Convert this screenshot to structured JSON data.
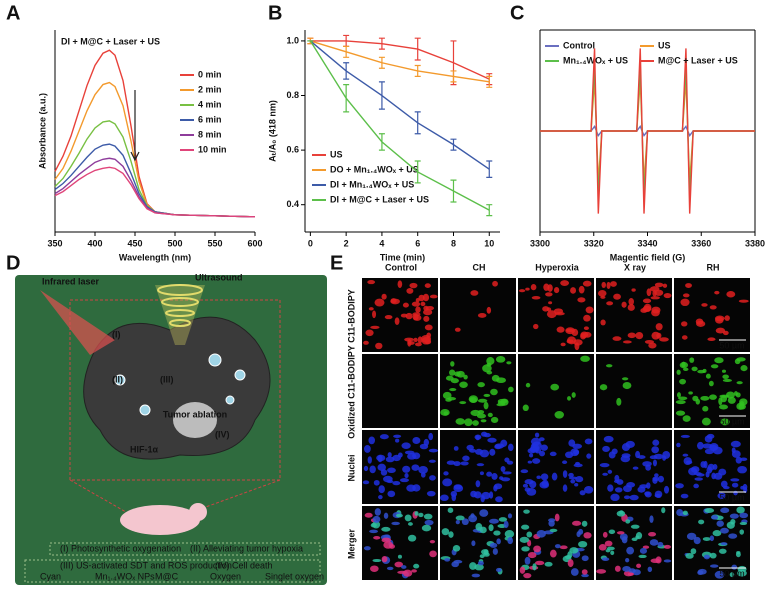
{
  "panel_labels": [
    "A",
    "B",
    "C",
    "D",
    "E"
  ],
  "chart_data": [
    {
      "type": "line",
      "annotation": "DI + M@C + Laser + US",
      "x_label": "Wavelength (nm)",
      "y_label": "Absorbance (a.u.)",
      "x": [
        350,
        360,
        370,
        380,
        390,
        400,
        410,
        418,
        425,
        435,
        445,
        455,
        465,
        475,
        500,
        550,
        600
      ],
      "xlim": [
        350,
        600
      ],
      "xticks": [
        350,
        400,
        450,
        500,
        550,
        600
      ],
      "ylim": [
        0,
        2
      ],
      "series": [
        {
          "name": "0 min",
          "color": "#e8413a",
          "values": [
            0.6,
            0.75,
            0.95,
            1.2,
            1.45,
            1.65,
            1.77,
            1.8,
            1.75,
            1.5,
            1.05,
            0.55,
            0.28,
            0.2,
            0.17,
            0.16,
            0.15
          ]
        },
        {
          "name": "2 min",
          "color": "#f39a2d",
          "values": [
            0.52,
            0.63,
            0.8,
            1.0,
            1.2,
            1.36,
            1.46,
            1.48,
            1.44,
            1.25,
            0.9,
            0.5,
            0.27,
            0.2,
            0.17,
            0.16,
            0.15
          ]
        },
        {
          "name": "4 min",
          "color": "#78c043",
          "values": [
            0.45,
            0.53,
            0.65,
            0.78,
            0.92,
            1.03,
            1.09,
            1.1,
            1.07,
            0.94,
            0.7,
            0.42,
            0.26,
            0.2,
            0.17,
            0.16,
            0.15
          ]
        },
        {
          "name": "6 min",
          "color": "#3d5ba8",
          "values": [
            0.42,
            0.48,
            0.56,
            0.65,
            0.74,
            0.82,
            0.86,
            0.87,
            0.85,
            0.76,
            0.58,
            0.38,
            0.25,
            0.2,
            0.17,
            0.16,
            0.15
          ]
        },
        {
          "name": "8 min",
          "color": "#8e3c9b",
          "values": [
            0.38,
            0.43,
            0.5,
            0.57,
            0.63,
            0.69,
            0.72,
            0.73,
            0.72,
            0.65,
            0.51,
            0.35,
            0.24,
            0.19,
            0.17,
            0.16,
            0.15
          ]
        },
        {
          "name": "10 min",
          "color": "#e0457a",
          "values": [
            0.36,
            0.4,
            0.46,
            0.52,
            0.57,
            0.61,
            0.63,
            0.64,
            0.63,
            0.58,
            0.47,
            0.33,
            0.23,
            0.19,
            0.17,
            0.16,
            0.15
          ]
        }
      ]
    },
    {
      "type": "line",
      "x_label": "Time (min)",
      "y_label": "Aₜ/A₀ (418 nm)",
      "x": [
        0,
        2,
        4,
        6,
        8,
        10
      ],
      "xlim": [
        -0.3,
        10.6
      ],
      "xticks": [
        0,
        2,
        4,
        6,
        8,
        10
      ],
      "ylim": [
        0.3,
        1.04
      ],
      "yticks": [
        0.4,
        0.6,
        0.8,
        {
          "value": 1,
          "label": "1.0"
        }
      ],
      "series": [
        {
          "name": "US",
          "color": "#e8413a",
          "values": [
            1,
            1,
            0.99,
            0.97,
            0.92,
            0.86
          ],
          "errors": [
            0.01,
            0.02,
            0.02,
            0.04,
            0.08,
            0.02
          ]
        },
        {
          "name": "DO + Mn₁.₄WOₓ + US",
          "color": "#f39a2d",
          "values": [
            1,
            0.96,
            0.92,
            0.89,
            0.87,
            0.85
          ],
          "errors": [
            0.01,
            0.02,
            0.02,
            0.02,
            0.02,
            0.02
          ]
        },
        {
          "name": "DI + Mn₁.₄WOₓ + US",
          "color": "#3d5ba8",
          "values": [
            1,
            0.89,
            0.8,
            0.7,
            0.62,
            0.53
          ],
          "errors": [
            0,
            0.03,
            0.05,
            0.04,
            0.02,
            0.03
          ]
        },
        {
          "name": "DI + M@C + Laser + US",
          "color": "#5cbf4a",
          "values": [
            1,
            0.79,
            0.63,
            0.52,
            0.45,
            0.38
          ],
          "errors": [
            0,
            0.05,
            0.03,
            0.04,
            0.04,
            0.02
          ]
        }
      ]
    },
    {
      "type": "line",
      "x_label": "Magentic field (G)",
      "x": [
        3300,
        3319,
        3320.3,
        3321.7,
        3323,
        3336,
        3337.3,
        3338.7,
        3340,
        3353,
        3354.3,
        3355.7,
        3357,
        3380
      ],
      "xlim": [
        3300,
        3380
      ],
      "xticks": [
        3300,
        3320,
        3340,
        3360,
        3380
      ],
      "ylim": [
        -1.1,
        1.1
      ],
      "series": [
        {
          "name": "Control",
          "color": "#6a6fc0",
          "values": [
            0,
            0,
            0.05,
            -0.05,
            0,
            0,
            0.05,
            -0.05,
            0,
            0,
            0.05,
            -0.05,
            0,
            0
          ]
        },
        {
          "name": "US",
          "color": "#f39a2d",
          "values": [
            0,
            0,
            0.55,
            -0.55,
            0,
            0,
            0.55,
            -0.55,
            0,
            0,
            0.55,
            -0.55,
            0,
            0
          ]
        },
        {
          "name": "Mn₁.₄WOₓ + US",
          "color": "#5cbf4a",
          "values": [
            0,
            0,
            0.7,
            -0.7,
            0,
            0,
            0.7,
            -0.7,
            0,
            0,
            0.7,
            -0.7,
            0,
            0
          ]
        },
        {
          "name": "M@C + Laser + US",
          "color": "#e8413a",
          "values": [
            0,
            0,
            0.9,
            -0.9,
            0,
            0,
            0.9,
            -0.9,
            0,
            0,
            0.9,
            -0.9,
            0,
            0
          ]
        }
      ]
    }
  ],
  "diagram": {
    "laser": "Infrared laser",
    "ultrasound": "Ultrasound",
    "steps": [
      "(I)",
      "(II)",
      "(III)",
      "(IV)"
    ],
    "tumor": "Tumor ablation",
    "hif": "HIF-1α",
    "captions": [
      "(I) Photosynthetic oxygenation",
      "(II) Alleviating tumor hypoxia",
      "(III) US-activated SDT and ROS production",
      "(IV) Cell death"
    ],
    "legend": [
      "Cyan",
      "Mn₁.₄WOₓ NPs",
      "M@C",
      "Oxygen",
      "Singlet oxygen"
    ]
  },
  "microscopy": {
    "columns": [
      "Control",
      "CH",
      "Hyperoxia",
      "X ray",
      "RH"
    ],
    "rows": [
      "C11-BODIPY",
      "Oxidized C11-BODIPY",
      "Nuclei",
      "Merger"
    ],
    "scale_bar": "50 µm"
  }
}
